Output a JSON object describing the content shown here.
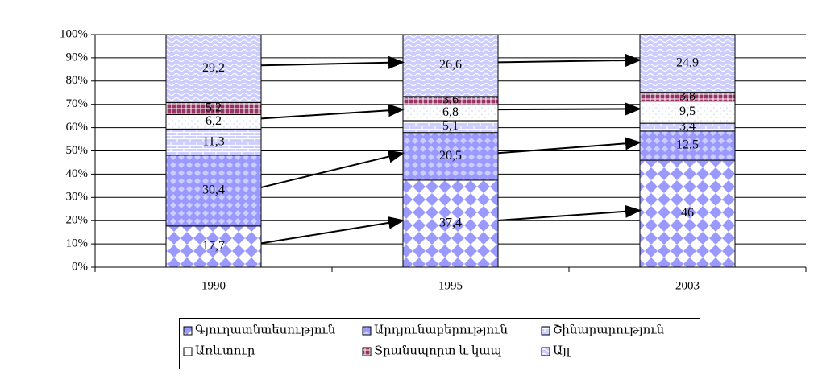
{
  "chart_data": {
    "type": "bar",
    "stacked": true,
    "categories": [
      "1990",
      "1995",
      "2003"
    ],
    "series": [
      {
        "name": "Գյուղատնտեսություն",
        "color": "#9999ff",
        "values": [
          17.7,
          37.4,
          46
        ],
        "value_labels": [
          "17,7",
          "37,4",
          "46"
        ]
      },
      {
        "name": "Արդյունաբերություն",
        "color": "#9999ff",
        "values": [
          30.4,
          20.5,
          12.5
        ],
        "value_labels": [
          "30,4",
          "20,5",
          "12,5"
        ]
      },
      {
        "name": "Շինարարություն",
        "color": "#ccccff",
        "values": [
          11.3,
          5.1,
          3.4
        ],
        "value_labels": [
          "11,3",
          "5,1",
          "3,4"
        ]
      },
      {
        "name": "Առևտուր",
        "color": "#ccccff",
        "values": [
          6.2,
          6.8,
          9.5
        ],
        "value_labels": [
          "6,2",
          "6,8",
          "9,5"
        ]
      },
      {
        "name": "Տրանսպորտ և կապ",
        "color": "#993366",
        "values": [
          5.2,
          3.6,
          3.8
        ],
        "value_labels": [
          "5,2",
          "3,6",
          "3,8"
        ]
      },
      {
        "name": "Այլ",
        "color": "#ccccff",
        "values": [
          29.2,
          26.6,
          24.9
        ],
        "value_labels": [
          "29,2",
          "26,6",
          "24,9"
        ]
      }
    ],
    "ylim": [
      0,
      100
    ],
    "yticks": [
      {
        "value": 0,
        "label": "0%"
      },
      {
        "value": 10,
        "label": "10%"
      },
      {
        "value": 20,
        "label": "20%"
      },
      {
        "value": 30,
        "label": "30%"
      },
      {
        "value": 40,
        "label": "40%"
      },
      {
        "value": 50,
        "label": "50%"
      },
      {
        "value": 60,
        "label": "60%"
      },
      {
        "value": 70,
        "label": "70%"
      },
      {
        "value": 80,
        "label": "80%"
      },
      {
        "value": 90,
        "label": "90%"
      },
      {
        "value": 100,
        "label": "100%"
      }
    ],
    "grid": true,
    "legend": "bottom"
  }
}
